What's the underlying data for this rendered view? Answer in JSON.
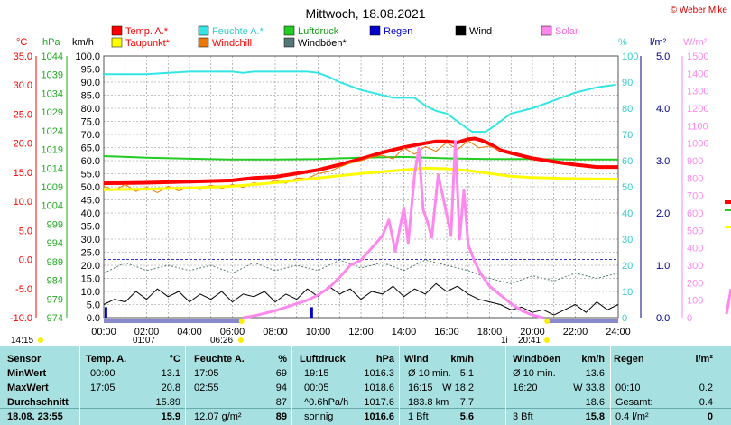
{
  "header": {
    "title": "Mittwoch, 18.08.2021",
    "credit": "© Weber Mike",
    "credit_color": "#cc0000"
  },
  "legend": [
    {
      "label": "Temp. A.*",
      "color": "#ff0000",
      "text_color": "#ff0000"
    },
    {
      "label": "Feuchte A.*",
      "color": "#33e6e6",
      "text_color": "#33cccc"
    },
    {
      "label": "Luftdruck",
      "color": "#22cc22",
      "text_color": "#119911"
    },
    {
      "label": "Regen",
      "color": "#0000cc",
      "text_color": "#0000cc"
    },
    {
      "label": "Wind",
      "color": "#000000",
      "text_color": "#000000"
    },
    {
      "label": "Solar",
      "color": "#ff88ee",
      "text_color": "#ff66dd"
    },
    {
      "label": "Taupunkt*",
      "color": "#ffff00",
      "text_color": "#ff0000"
    },
    {
      "label": "Windchill",
      "color": "#ee7700",
      "text_color": "#ff0000"
    },
    {
      "label": "Windböen*",
      "color": "#557777",
      "text_color": "#000000"
    }
  ],
  "chart_data": {
    "type": "line",
    "title": "Mittwoch, 18.08.2021",
    "grid": true,
    "x_ticks": [
      "00:00",
      "02:00",
      "04:00",
      "06:00",
      "08:00",
      "10:00",
      "12:00",
      "14:00",
      "16:00",
      "18:00",
      "20:00",
      "22:00",
      "24:00"
    ],
    "xlim": [
      0,
      24
    ],
    "axes": {
      "temp": {
        "unit": "°C",
        "range": [
          -10,
          35
        ],
        "ticks": [
          "35.0",
          "30.0",
          "25.0",
          "20.0",
          "15.0",
          "10.0",
          "5.0",
          "0.0",
          "-5.0",
          "-10.0"
        ],
        "color": "#ff0000"
      },
      "pressure": {
        "unit": "hPa",
        "range": [
          974,
          1044
        ],
        "ticks": [
          "1044",
          "1039",
          "1034",
          "1029",
          "1024",
          "1019",
          "1014",
          "1009",
          "1004",
          "999",
          "994",
          "989",
          "984",
          "979",
          "974"
        ],
        "color": "#22aa22"
      },
      "wind": {
        "unit": "km/h",
        "range": [
          0,
          100
        ],
        "ticks": [
          "100.0",
          "95.0",
          "90.0",
          "85.0",
          "80.0",
          "75.0",
          "70.0",
          "65.0",
          "60.0",
          "55.0",
          "50.0",
          "45.0",
          "40.0",
          "35.0",
          "30.0",
          "25.0",
          "20.0",
          "15.0",
          "10.0",
          "5.0",
          "0.0"
        ],
        "color": "#000000"
      },
      "humidity": {
        "unit": "%",
        "range": [
          0,
          100
        ],
        "ticks": [
          "100",
          "90",
          "80",
          "70",
          "60",
          "50",
          "40",
          "30",
          "20",
          "10",
          "0"
        ],
        "color": "#33cccc"
      },
      "rain": {
        "unit": "l/m²",
        "range": [
          0,
          5
        ],
        "ticks": [
          "5.0",
          "4.0",
          "3.0",
          "2.0",
          "1.0",
          "0.0"
        ],
        "color": "#000088"
      },
      "solar": {
        "unit": "W/m²",
        "range": [
          0,
          1500
        ],
        "ticks": [
          "1500",
          "1400",
          "1300",
          "1200",
          "1100",
          "1000",
          "900",
          "800",
          "700",
          "600",
          "500",
          "400",
          "300",
          "200",
          "100",
          "0"
        ],
        "color": "#ff88ee"
      }
    },
    "series": [
      {
        "name": "Feuchte A.*",
        "axis": "humidity",
        "color": "#33e6e6",
        "width": 2,
        "x": [
          0,
          1,
          2,
          3,
          4,
          5,
          6,
          6.5,
          7,
          8,
          9,
          9.5,
          10,
          10.5,
          11,
          12,
          13,
          13.5,
          14,
          14.5,
          15,
          15.5,
          16,
          16.5,
          17,
          17.2,
          17.5,
          17.8,
          18,
          18.5,
          19,
          20,
          21,
          22,
          23,
          23.9
        ],
        "y": [
          93,
          93,
          93,
          93.5,
          94,
          94,
          94,
          93.5,
          94,
          94,
          94,
          94,
          93.5,
          92,
          90,
          87,
          85,
          84,
          84,
          84,
          81,
          79,
          78,
          75,
          72,
          71,
          71,
          71,
          72,
          75,
          78,
          80,
          83,
          86,
          88,
          89
        ]
      },
      {
        "name": "Luftdruck",
        "axis": "pressure",
        "color": "#22cc22",
        "width": 2,
        "x": [
          0,
          2,
          4,
          6,
          8,
          10,
          12,
          14,
          16,
          18,
          20,
          22,
          24
        ],
        "y": [
          1017.2,
          1016.8,
          1016.5,
          1016.3,
          1016.3,
          1016.4,
          1016.8,
          1017.0,
          1016.6,
          1016.4,
          1016.4,
          1016.3,
          1016.3
        ]
      },
      {
        "name": "Temp. A.*",
        "axis": "temp",
        "color": "#ff0000",
        "width": 4,
        "x": [
          0,
          2,
          4,
          6,
          7,
          8,
          9,
          10,
          11,
          12,
          13,
          14,
          15,
          15.5,
          16,
          16.5,
          17,
          17.3,
          17.6,
          18,
          18.5,
          19,
          20,
          21,
          22,
          23,
          24
        ],
        "y": [
          13.1,
          13.2,
          13.4,
          13.6,
          14.0,
          14.2,
          14.8,
          15.4,
          16.3,
          17.3,
          18.4,
          19.3,
          20.0,
          20.3,
          20.3,
          20.1,
          20.7,
          20.8,
          20.5,
          19.9,
          18.8,
          18.3,
          17.4,
          16.8,
          16.3,
          15.9,
          15.9
        ]
      },
      {
        "name": "Windchill",
        "axis": "temp",
        "color": "#ee7700",
        "width": 1,
        "x": [
          0,
          0.5,
          1,
          1.5,
          2,
          2.5,
          3,
          3.5,
          4,
          4.5,
          5,
          5.5,
          6,
          6.5,
          7,
          7.5,
          8,
          8.5,
          9,
          9.5,
          10,
          10.5,
          11,
          11.5,
          12,
          12.5,
          13,
          13.5,
          14,
          14.5,
          15,
          15.5,
          16,
          16.5,
          17,
          17.5,
          18,
          18.5
        ],
        "y": [
          12.6,
          11.9,
          12.9,
          11.7,
          12.4,
          11.5,
          12.6,
          11.8,
          12.5,
          12.0,
          12.8,
          12.2,
          12.9,
          12.4,
          13.2,
          12.9,
          13.6,
          13.1,
          14.0,
          13.9,
          14.8,
          15.1,
          15.9,
          16.6,
          17.0,
          17.6,
          17.9,
          17.3,
          19.2,
          18.1,
          19.4,
          18.6,
          20.1,
          18.9,
          20.4,
          19.2,
          19.5,
          18.7
        ]
      },
      {
        "name": "Taupunkt*",
        "axis": "temp",
        "color": "#ffff00",
        "width": 3,
        "x": [
          0,
          2,
          4,
          6,
          8,
          10,
          12,
          14,
          15,
          16,
          17,
          18,
          19,
          20,
          22,
          24
        ],
        "y": [
          12.0,
          12.1,
          12.3,
          12.6,
          13.2,
          14.0,
          14.8,
          15.4,
          15.7,
          15.6,
          15.3,
          14.8,
          14.3,
          14.1,
          13.9,
          13.8
        ]
      },
      {
        "name": "Windböen*",
        "axis": "wind",
        "color": "#557777",
        "width": 1,
        "dash": "2,2",
        "x": [
          0,
          1,
          2,
          3,
          4,
          5,
          6,
          7,
          8,
          9,
          10,
          11,
          12,
          13,
          14,
          15,
          16,
          17,
          18,
          19,
          20,
          21,
          22,
          23,
          24
        ],
        "y": [
          17,
          21,
          18,
          20,
          18,
          20,
          17,
          21,
          18,
          20,
          18,
          22,
          19,
          21,
          18,
          22,
          20,
          18,
          15,
          13,
          16,
          14,
          17,
          15,
          17
        ]
      },
      {
        "name": "Wind",
        "axis": "wind",
        "color": "#000000",
        "width": 1,
        "x": [
          0,
          0.5,
          1,
          1.5,
          2,
          2.5,
          3,
          3.5,
          4,
          4.5,
          5,
          5.5,
          6,
          6.5,
          7,
          7.5,
          8,
          8.5,
          9,
          9.5,
          10,
          10.5,
          11,
          11.5,
          12,
          12.5,
          13,
          13.5,
          14,
          14.5,
          15,
          15.5,
          16,
          16.5,
          17,
          17.5,
          18,
          18.5,
          19,
          19.5,
          20,
          20.5,
          21,
          21.5,
          22,
          22.5,
          23,
          23.5,
          24
        ],
        "y": [
          5,
          7,
          6,
          10,
          7,
          11,
          8,
          10,
          6,
          9,
          7,
          10,
          6,
          9,
          8,
          10,
          6,
          9,
          7,
          11,
          8,
          12,
          9,
          11,
          7,
          10,
          9,
          12,
          8,
          11,
          9,
          13,
          10,
          12,
          9,
          7,
          6,
          5,
          3,
          4,
          2,
          3,
          1,
          3,
          5,
          2,
          6,
          3,
          5
        ]
      },
      {
        "name": "Solar",
        "axis": "solar",
        "color": "#ff88ee",
        "width": 3,
        "x": [
          6.5,
          7,
          8,
          8.5,
          9,
          9.5,
          10,
          10.5,
          11,
          11.5,
          12,
          12.5,
          13,
          13.3,
          13.6,
          14,
          14.2,
          14.5,
          14.7,
          14.9,
          15.1,
          15.3,
          15.6,
          15.9,
          16.2,
          16.4,
          16.6,
          16.8,
          17,
          17.3,
          17.6,
          18,
          18.5,
          19,
          19.5,
          20,
          20.5
        ],
        "y": [
          0,
          10,
          40,
          60,
          80,
          100,
          130,
          170,
          230,
          300,
          330,
          400,
          470,
          560,
          380,
          630,
          430,
          820,
          970,
          620,
          550,
          460,
          820,
          650,
          470,
          1010,
          450,
          730,
          420,
          320,
          250,
          180,
          130,
          80,
          40,
          15,
          0
        ]
      }
    ],
    "rain_bars": [
      {
        "x": 0.1,
        "y": 0.2
      },
      {
        "x": 9.7,
        "y": 0.2
      }
    ],
    "sun": {
      "sunrise": "06:26",
      "sunset": "20:41",
      "day_start": "01:07",
      "day_end": "1i"
    },
    "time_left": "14:15"
  },
  "table": {
    "header": [
      "Sensor",
      "Temp. A.",
      "°C",
      "Feuchte A.",
      "%",
      "Luftdruck",
      "hPa",
      "Wind",
      "km/h",
      "Windböen",
      "km/h",
      "Regen",
      "l/m²"
    ],
    "rows": [
      {
        "label": "MinWert",
        "cells": [
          "00:00",
          "13.1",
          "17:05",
          "69",
          "19:15",
          "1016.3",
          "Ø 10 min.",
          "5.1",
          "Ø 10 min.",
          "13.6",
          "",
          ""
        ]
      },
      {
        "label": "MaxWert",
        "cells": [
          "17:05",
          "20.8",
          "02:55",
          "94",
          "00:05",
          "1018.6",
          "16:15",
          "W 18.2",
          "16:20",
          "W 33.8",
          "00:10",
          "0.2"
        ]
      },
      {
        "label": "Durchschnitt",
        "cells": [
          "",
          "15.89",
          "",
          "87",
          "^0.6hPa/h",
          "1017.6",
          "183.8 km",
          "7.7",
          "",
          "18.6",
          "Gesamt:",
          "0.4"
        ]
      },
      {
        "label": "18.08. 23:55",
        "cells": [
          "",
          "15.9",
          "12.07 g/m²",
          "89",
          "sonnig",
          "1016.6",
          "1 Bft",
          "5.6",
          "3 Bft",
          "15.8",
          "0.4 l/m²",
          "0"
        ]
      }
    ]
  }
}
